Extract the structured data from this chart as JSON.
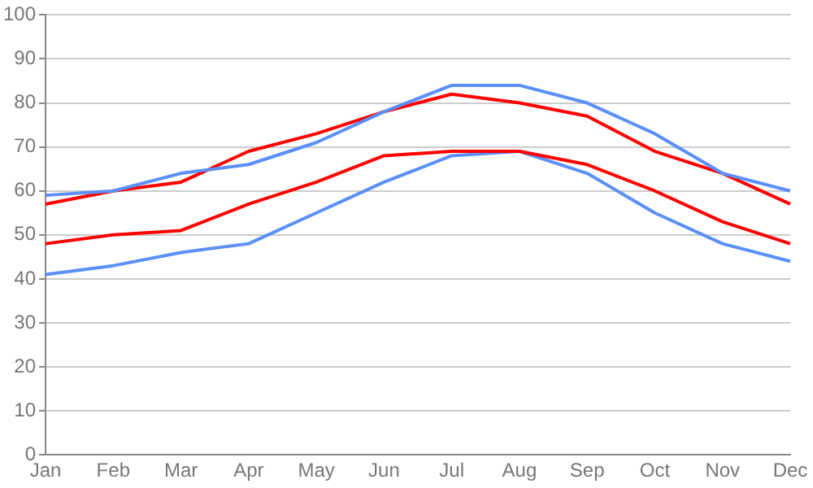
{
  "chart_data": {
    "type": "line",
    "categories": [
      "Jan",
      "Feb",
      "Mar",
      "Apr",
      "May",
      "Jun",
      "Jul",
      "Aug",
      "Sep",
      "Oct",
      "Nov",
      "Dec"
    ],
    "series": [
      {
        "color": "#5b8ff9",
        "values": [
          59,
          60,
          64,
          66,
          71,
          78,
          84,
          84,
          80,
          73,
          64,
          60
        ]
      },
      {
        "color": "#ff0000",
        "values": [
          57,
          60,
          62,
          69,
          73,
          78,
          82,
          80,
          77,
          69,
          64,
          57
        ]
      },
      {
        "color": "#ff0000",
        "values": [
          48,
          50,
          51,
          57,
          62,
          68,
          69,
          69,
          66,
          60,
          53,
          48
        ]
      },
      {
        "color": "#5b8ff9",
        "values": [
          41,
          43,
          46,
          48,
          55,
          62,
          68,
          69,
          64,
          55,
          48,
          44
        ]
      }
    ],
    "ylim": [
      0,
      100
    ],
    "yticks": [
      0,
      10,
      20,
      30,
      40,
      50,
      60,
      70,
      80,
      90,
      100
    ],
    "grid": "y",
    "legend": false,
    "marker": "none",
    "line_style": "solid"
  }
}
